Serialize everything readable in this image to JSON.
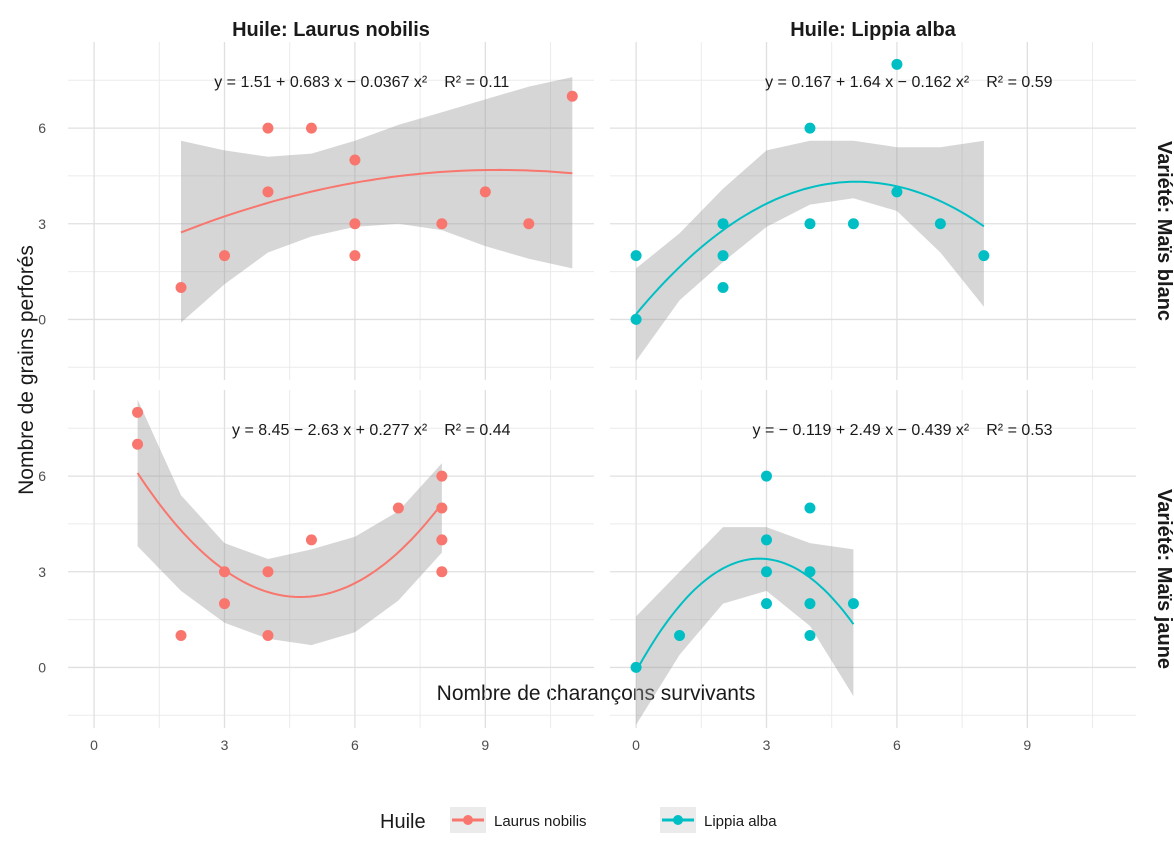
{
  "chart_data": {
    "type": "scatter",
    "xlabel": "Nombre de charançons survivants",
    "ylabel": "Nombre de grains perforés",
    "xlim": [
      -0.6,
      11.5
    ],
    "ylim": [
      -1.9,
      8.7
    ],
    "x_ticks": [
      0,
      3,
      6,
      9
    ],
    "y_ticks": [
      0,
      3,
      6
    ],
    "grid": true,
    "legend": {
      "title": "Huile",
      "position": "bottom",
      "entries": [
        "Laurus nobilis",
        "Lippia alba"
      ]
    },
    "colors": {
      "Laurus nobilis": "#F8766D",
      "Lippia alba": "#00BFC4"
    },
    "panels": [
      {
        "col_label": "Huile: Laurus nobilis",
        "row_label": "Variété: Maïs blanc",
        "series": "Laurus nobilis",
        "equation": {
          "fit": "y = 1.51 + 0.683 x − 0.0367 x²",
          "r2": "R² = 0.11"
        },
        "coef": [
          1.51,
          0.683,
          -0.0367
        ],
        "fit_range": [
          2,
          11
        ],
        "band_lower": [
          -0.1,
          1.1,
          2.1,
          2.6,
          2.9,
          3.0,
          2.8,
          2.3,
          1.9,
          1.6
        ],
        "band_upper": [
          5.6,
          5.3,
          5.1,
          5.2,
          5.6,
          6.1,
          6.5,
          6.9,
          7.3,
          7.6
        ],
        "points": [
          [
            2,
            1
          ],
          [
            3,
            2
          ],
          [
            4,
            6
          ],
          [
            4,
            4
          ],
          [
            5,
            6
          ],
          [
            6,
            5
          ],
          [
            6,
            3
          ],
          [
            6,
            2
          ],
          [
            8,
            3
          ],
          [
            9,
            4
          ],
          [
            10,
            3
          ],
          [
            11,
            7
          ]
        ]
      },
      {
        "col_label": "Huile: Lippia alba",
        "row_label": "Variété: Maïs blanc",
        "series": "Lippia alba",
        "equation": {
          "fit": "y = 0.167 + 1.64 x − 0.162 x²",
          "r2": "R² = 0.59"
        },
        "coef": [
          0.167,
          1.64,
          -0.162
        ],
        "fit_range": [
          0,
          8
        ],
        "band_lower": [
          -1.3,
          0.6,
          1.8,
          2.9,
          3.6,
          3.8,
          3.4,
          2.1,
          0.4
        ],
        "band_upper": [
          1.6,
          2.7,
          4.1,
          5.3,
          5.6,
          5.6,
          5.4,
          5.4,
          5.6
        ],
        "points": [
          [
            0,
            2
          ],
          [
            0,
            0
          ],
          [
            2,
            3
          ],
          [
            2,
            2
          ],
          [
            2,
            1
          ],
          [
            4,
            6
          ],
          [
            4,
            3
          ],
          [
            5,
            3
          ],
          [
            6,
            8
          ],
          [
            6,
            4
          ],
          [
            7,
            3
          ],
          [
            8,
            2
          ]
        ]
      },
      {
        "col_label": "Huile: Laurus nobilis",
        "row_label": "Variété: Maïs jaune",
        "series": "Laurus nobilis",
        "equation": {
          "fit": "y = 8.45 − 2.63 x + 0.277 x²",
          "r2": "R² = 0.44"
        },
        "coef": [
          8.45,
          -2.63,
          0.277
        ],
        "fit_range": [
          1,
          8
        ],
        "band_lower": [
          3.8,
          2.4,
          1.4,
          0.9,
          0.7,
          1.1,
          2.1,
          3.6
        ],
        "band_upper": [
          8.4,
          5.4,
          3.9,
          3.4,
          3.7,
          4.1,
          4.9,
          6.4
        ],
        "points": [
          [
            1,
            8
          ],
          [
            1,
            7
          ],
          [
            2,
            1
          ],
          [
            3,
            3
          ],
          [
            3,
            2
          ],
          [
            4,
            3
          ],
          [
            4,
            1
          ],
          [
            5,
            4
          ],
          [
            7,
            5
          ],
          [
            8,
            6
          ],
          [
            8,
            5
          ],
          [
            8,
            4
          ],
          [
            8,
            3
          ]
        ]
      },
      {
        "col_label": "Huile: Lippia alba",
        "row_label": "Variété: Maïs jaune",
        "series": "Lippia alba",
        "equation": {
          "fit": "y = − 0.119 + 2.49 x − 0.439 x²",
          "r2": "R² = 0.53"
        },
        "coef": [
          -0.119,
          2.49,
          -0.439
        ],
        "fit_range": [
          0,
          5
        ],
        "band_lower": [
          -1.8,
          0.4,
          2.0,
          2.4,
          1.3,
          -0.9
        ],
        "band_upper": [
          1.6,
          3.0,
          4.4,
          4.4,
          3.9,
          3.7
        ],
        "points": [
          [
            0,
            0
          ],
          [
            1,
            1
          ],
          [
            3,
            6
          ],
          [
            3,
            4
          ],
          [
            3,
            3
          ],
          [
            3,
            2
          ],
          [
            4,
            5
          ],
          [
            4,
            3
          ],
          [
            4,
            2
          ],
          [
            4,
            1
          ],
          [
            5,
            2
          ]
        ]
      }
    ]
  }
}
